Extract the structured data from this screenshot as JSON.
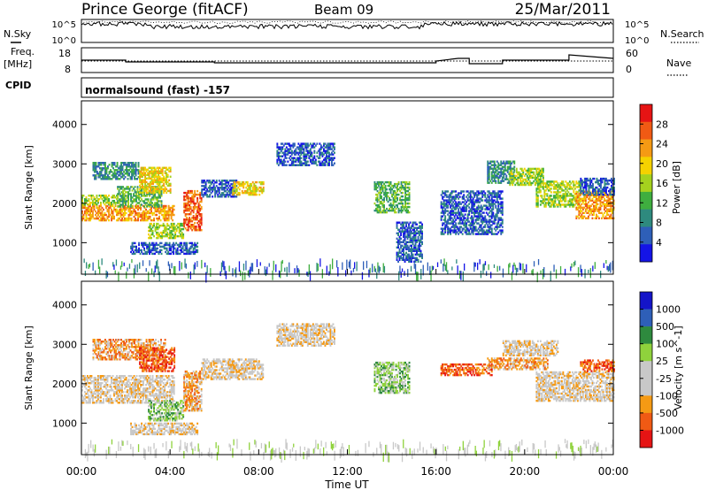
{
  "header": {
    "station": "Prince George (fitACF)",
    "beam": "Beam 09",
    "date": "25/Mar/2011"
  },
  "nsky_panel": {
    "left_label": "N.Sky",
    "right_label": "N.Search",
    "left_ticks": [
      "10^5",
      "10^0"
    ],
    "right_ticks": [
      "10^5",
      "10^0"
    ]
  },
  "freq_panel": {
    "left_label_1": "Freq.",
    "left_label_2": "[MHz]",
    "right_label": "Nave",
    "left_ticks": [
      "18",
      "8"
    ],
    "right_ticks": [
      "60",
      "0"
    ]
  },
  "cpid_panel": {
    "label": "CPID",
    "program": "normalsound (fast) -157"
  },
  "colors": {
    "power": [
      "#1414e6",
      "#2e5fb8",
      "#2e8a7e",
      "#3fae3f",
      "#a5d21e",
      "#f5d200",
      "#f59a14",
      "#f05a14",
      "#e61414"
    ],
    "velocity": [
      "#e61414",
      "#f05a14",
      "#f59a14",
      "#c8c8c8",
      "#c8c8c8",
      "#8fd23c",
      "#2e8a3e",
      "#2e5fb8",
      "#1414c8"
    ]
  },
  "chart_data": [
    {
      "type": "heatmap",
      "name": "power",
      "ylabel": "Slant Range [km]",
      "yticks": [
        1000,
        2000,
        3000,
        4000
      ],
      "ylim": [
        200,
        4600
      ],
      "xlim": [
        0,
        24
      ],
      "colorbar": {
        "label": "Power [dB]",
        "ticks": [
          "4",
          "8",
          "12",
          "16",
          "20",
          "24",
          "28"
        ]
      },
      "bands": [
        {
          "t": [
            0.0,
            4.2
          ],
          "r": [
            1550,
            1950
          ],
          "level": 6
        },
        {
          "t": [
            0.0,
            1.6
          ],
          "r": [
            1950,
            2200
          ],
          "level": 4
        },
        {
          "t": [
            1.6,
            3.6
          ],
          "r": [
            1900,
            2400
          ],
          "level": 3
        },
        {
          "t": [
            0.5,
            2.6
          ],
          "r": [
            2600,
            3050
          ],
          "level": 2
        },
        {
          "t": [
            2.6,
            4.0
          ],
          "r": [
            2250,
            2900
          ],
          "level": 5
        },
        {
          "t": [
            3.0,
            4.6
          ],
          "r": [
            1100,
            1500
          ],
          "level": 4
        },
        {
          "t": [
            4.6,
            5.4
          ],
          "r": [
            1300,
            2300
          ],
          "level": 7
        },
        {
          "t": [
            2.2,
            5.2
          ],
          "r": [
            700,
            1000
          ],
          "level": 1
        },
        {
          "t": [
            5.4,
            7.0
          ],
          "r": [
            2150,
            2600
          ],
          "level": 1
        },
        {
          "t": [
            6.8,
            8.2
          ],
          "r": [
            2200,
            2550
          ],
          "level": 5
        },
        {
          "t": [
            8.8,
            11.4
          ],
          "r": [
            2950,
            3500
          ],
          "level": 1
        },
        {
          "t": [
            13.2,
            14.8
          ],
          "r": [
            1750,
            2550
          ],
          "level": 3
        },
        {
          "t": [
            14.2,
            15.4
          ],
          "r": [
            500,
            1500
          ],
          "level": 1
        },
        {
          "t": [
            16.2,
            19.0
          ],
          "r": [
            1200,
            2300
          ],
          "level": 1
        },
        {
          "t": [
            18.3,
            19.5
          ],
          "r": [
            2500,
            3050
          ],
          "level": 2
        },
        {
          "t": [
            19.3,
            20.8
          ],
          "r": [
            2450,
            2900
          ],
          "level": 4
        },
        {
          "t": [
            20.5,
            22.5
          ],
          "r": [
            1900,
            2550
          ],
          "level": 4
        },
        {
          "t": [
            22.3,
            24.0
          ],
          "r": [
            1600,
            2300
          ],
          "level": 6
        },
        {
          "t": [
            22.5,
            24.0
          ],
          "r": [
            2200,
            2650
          ],
          "level": 1
        }
      ]
    },
    {
      "type": "heatmap",
      "name": "velocity",
      "ylabel": "Slant Range [km]",
      "xlabel": "Time UT",
      "xticks": [
        "00:00",
        "04:00",
        "08:00",
        "12:00",
        "16:00",
        "20:00",
        "00:00"
      ],
      "yticks": [
        1000,
        2000,
        3000,
        4000
      ],
      "ylim": [
        200,
        4600
      ],
      "xlim": [
        0,
        24
      ],
      "colorbar": {
        "label": "Velocity [m s^-1]",
        "ticks": [
          "-1000",
          "-500",
          "-100",
          "-25",
          "25",
          "100",
          "500",
          "1000"
        ]
      },
      "bands": [
        {
          "t": [
            0.0,
            4.2
          ],
          "r": [
            1500,
            2200
          ],
          "level": 3
        },
        {
          "t": [
            0.5,
            3.8
          ],
          "r": [
            2600,
            3100
          ],
          "level": 2
        },
        {
          "t": [
            2.6,
            4.2
          ],
          "r": [
            2300,
            2900
          ],
          "level": 1
        },
        {
          "t": [
            3.0,
            4.6
          ],
          "r": [
            1050,
            1550
          ],
          "level": 5
        },
        {
          "t": [
            4.6,
            5.4
          ],
          "r": [
            1300,
            2300
          ],
          "level": 2
        },
        {
          "t": [
            2.2,
            5.2
          ],
          "r": [
            700,
            1000
          ],
          "level": 3
        },
        {
          "t": [
            5.4,
            8.2
          ],
          "r": [
            2100,
            2600
          ],
          "level": 3
        },
        {
          "t": [
            8.8,
            11.4
          ],
          "r": [
            2950,
            3500
          ],
          "level": 3
        },
        {
          "t": [
            13.2,
            14.8
          ],
          "r": [
            1750,
            2550
          ],
          "level": 5
        },
        {
          "t": [
            16.2,
            18.5
          ],
          "r": [
            2200,
            2500
          ],
          "level": 1
        },
        {
          "t": [
            18.3,
            21.0
          ],
          "r": [
            2350,
            2650
          ],
          "level": 2
        },
        {
          "t": [
            19.0,
            21.5
          ],
          "r": [
            2700,
            3100
          ],
          "level": 3
        },
        {
          "t": [
            20.5,
            24.0
          ],
          "r": [
            1550,
            2300
          ],
          "level": 3
        },
        {
          "t": [
            22.5,
            24.0
          ],
          "r": [
            2300,
            2600
          ],
          "level": 1
        }
      ]
    }
  ]
}
